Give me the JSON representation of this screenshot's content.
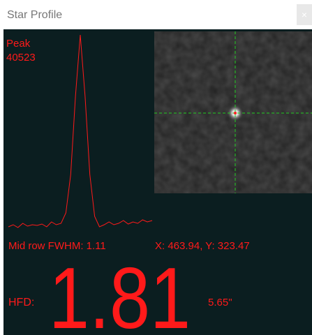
{
  "window": {
    "title": "Star Profile",
    "close": "×"
  },
  "profile": {
    "peak_label": "Peak",
    "peak_value": "40523",
    "values": [
      1422,
      1849,
      1280,
      2133,
      1564,
      1849,
      1706,
      1991,
      1422,
      2417,
      1849,
      2133,
      4266,
      12087,
      28000,
      40523,
      28000,
      12087,
      3555,
      1422,
      1849,
      2417,
      1849,
      2133,
      2702,
      1991,
      2417,
      2133,
      2844,
      2417,
      2702
    ]
  },
  "stats": {
    "fwhm": "Mid row FWHM: 1.11",
    "position": "X: 463.94, Y: 323.47",
    "hfd_label": "HFD:",
    "hfd_value": "1.81",
    "arcsec": "5.65\""
  }
}
